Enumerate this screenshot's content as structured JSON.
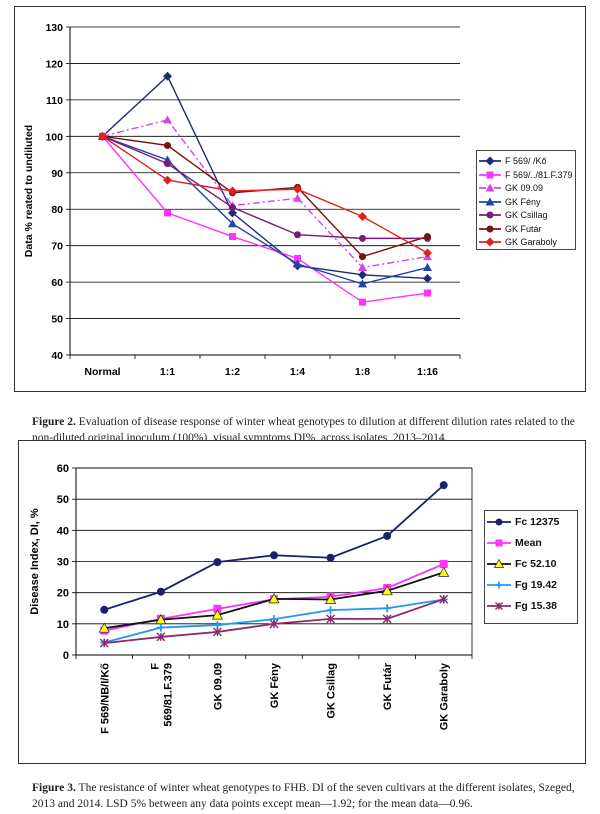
{
  "chart_data": [
    {
      "type": "line",
      "ylabel": "Data % reated to undiluted",
      "xlabel": "",
      "ylim": [
        40,
        130
      ],
      "yticks": [
        40,
        50,
        60,
        70,
        80,
        90,
        100,
        110,
        120,
        130
      ],
      "yticklabels": [
        "40",
        "50",
        "60",
        "70",
        "80",
        "90",
        "100",
        "110",
        "120",
        "130"
      ],
      "categories": [
        "Normal",
        "1:1",
        "1:2",
        "1:4",
        "1:8",
        "1:16"
      ],
      "grid": true,
      "legend_position": "right",
      "series": [
        {
          "name": "F 569/ /Kő",
          "color": "#1f2a7a",
          "marker": "diamond",
          "dash": "solid",
          "values": [
            100,
            116.5,
            79,
            64.5,
            62,
            61
          ]
        },
        {
          "name": "F 569/../81.F.379",
          "color": "#ff33ff",
          "marker": "square",
          "dash": "solid",
          "values": [
            100,
            79,
            72.5,
            66.5,
            54.5,
            57
          ]
        },
        {
          "name": "GK 09.09",
          "color": "#dd44dd",
          "marker": "triangle",
          "dash": "dashdot",
          "values": [
            100,
            104.5,
            81,
            83,
            64,
            67
          ]
        },
        {
          "name": "GK Fény",
          "color": "#2244aa",
          "marker": "triangle",
          "dash": "solid",
          "values": [
            100,
            93.5,
            76,
            65,
            59.5,
            64
          ]
        },
        {
          "name": "GK Csillag",
          "color": "#7a1a7a",
          "marker": "circle",
          "dash": "solid",
          "values": [
            100,
            92.5,
            80.5,
            73,
            72,
            72
          ]
        },
        {
          "name": "GK Futár",
          "color": "#7a1010",
          "marker": "circle",
          "dash": "solid",
          "values": [
            100,
            97.5,
            84.5,
            86,
            67,
            72.5
          ]
        },
        {
          "name": "GK Garaboly",
          "color": "#dd2222",
          "marker": "diamond",
          "dash": "solid",
          "values": [
            100,
            88,
            85,
            85.5,
            78,
            68
          ]
        }
      ]
    },
    {
      "type": "line",
      "ylabel": "Disease Index, DI, %",
      "xlabel": "",
      "ylim": [
        0,
        60
      ],
      "yticks": [
        0,
        10,
        20,
        30,
        40,
        50,
        60
      ],
      "yticklabels": [
        "0",
        "10",
        "20",
        "30",
        "40",
        "50",
        "60"
      ],
      "categories": [
        "F 569/NB/I/Kő",
        "F 569/81.F.379",
        "GK 09.09",
        "GK Fény",
        "GK Csillag",
        "GK Futár",
        "GK Garaboly"
      ],
      "category_lines": [
        [
          "F 569/NB/I/Kő"
        ],
        [
          "F",
          "569/81.F.379"
        ],
        [
          "GK 09.09"
        ],
        [
          "GK Fény"
        ],
        [
          "GK Csillag"
        ],
        [
          "GK Futár"
        ],
        [
          "GK Garaboly"
        ]
      ],
      "grid": true,
      "legend_position": "right",
      "series": [
        {
          "name": "Fc 12375",
          "color": "#1a1f6e",
          "marker": "circle",
          "values": [
            14.5,
            20.3,
            29.8,
            32,
            31.2,
            38.2,
            54.5
          ]
        },
        {
          "name": "Mean",
          "color": "#ff33ff",
          "marker": "square",
          "values": [
            7.8,
            11.6,
            14.8,
            17.9,
            18.7,
            21.5,
            29.2
          ]
        },
        {
          "name": "Fc 52.10",
          "color": "#111111",
          "marker": "triangle-yellow",
          "values": [
            8.6,
            11.3,
            12.8,
            18,
            17.8,
            20.6,
            26.5
          ]
        },
        {
          "name": "Fg 19.42",
          "color": "#2299ee",
          "marker": "star",
          "values": [
            4,
            8.8,
            9.6,
            11.5,
            14.4,
            15,
            17.8
          ]
        },
        {
          "name": "Fg 15.38",
          "color": "#8a2a6a",
          "marker": "x",
          "values": [
            3.8,
            5.8,
            7.4,
            10,
            11.6,
            11.6,
            17.9
          ]
        }
      ]
    }
  ],
  "captions": {
    "fig2_label": "Figure 2.",
    "fig2_text": " Evaluation of disease response of winter wheat genotypes to dilution at different dilution rates related to the non-diluted original inoculum (100%), visual symptoms DI%, across isolates, 2013–2014.",
    "fig3_label": "Figure 3.",
    "fig3_text": " The resistance of winter wheat genotypes to FHB. DI of the seven cultivars at the different isolates, Szeged, 2013 and 2014. LSD 5% between any data points except mean—1.92; for the mean data—0.96."
  }
}
